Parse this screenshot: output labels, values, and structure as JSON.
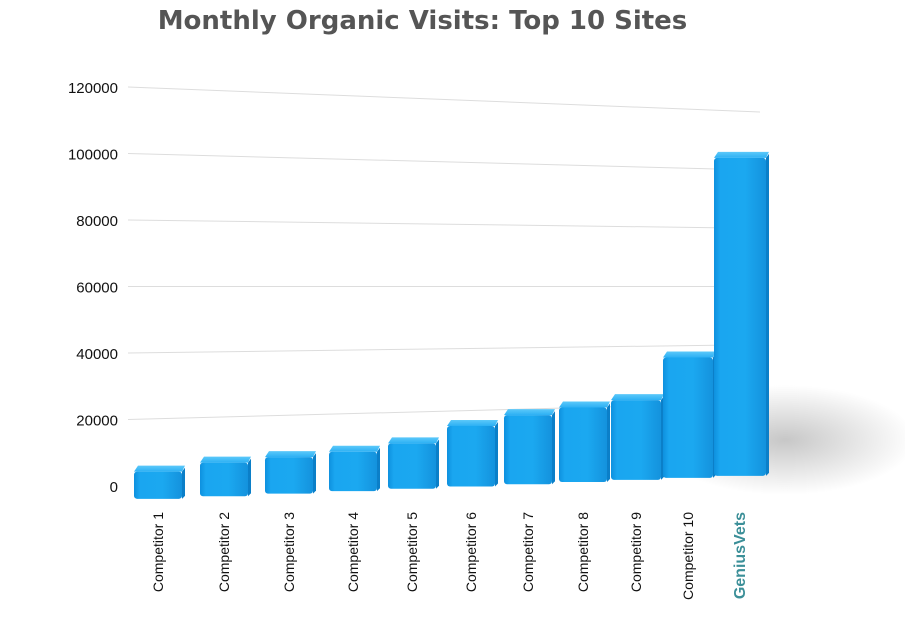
{
  "chart_data": {
    "type": "bar",
    "title": "Monthly Organic Visits: Top 10 Sites",
    "xlabel": "",
    "ylabel": "",
    "ylim": [
      0,
      120000
    ],
    "y_ticks": [
      0,
      20000,
      40000,
      60000,
      80000,
      100000,
      120000
    ],
    "y_tick_labels": [
      "0",
      "20000",
      "40000",
      "60000",
      "80000",
      "100000",
      "120000"
    ],
    "categories": [
      "Competitor 1",
      "Competitor 2",
      "Competitor 3",
      "Competitor 4",
      "Competitor 5",
      "Competitor 6",
      "Competitor 7",
      "Competitor 8",
      "Competitor 9",
      "Competitor 10",
      "GeniusVets"
    ],
    "values": [
      4000,
      6000,
      7000,
      8000,
      10000,
      15000,
      18000,
      20000,
      22000,
      36000,
      104000
    ],
    "highlight_category": "GeniusVets",
    "grid": true,
    "legend": "none",
    "bar_style": "3d",
    "colors": {
      "bar_front": "#1aa3ee",
      "bar_top": "#3cb8f7",
      "bar_side": "#0b7fc8",
      "highlight_label": "#3b8f98",
      "tick_label": "#111111",
      "grid": "#dddddd",
      "title": "#555555"
    }
  }
}
